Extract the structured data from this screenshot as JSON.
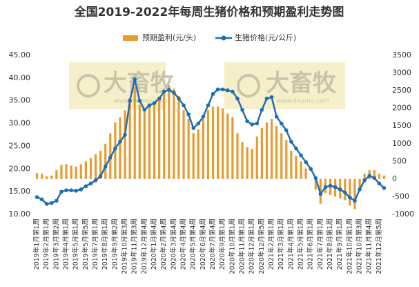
{
  "chart_data": {
    "type": "bar-line",
    "title": "全国2019-2022年每周生猪价格和预期盈利走势图",
    "watermarks": [
      "大畜牧",
      "www.dxumu.com",
      "大畜牧",
      "www.dxumu.com"
    ],
    "categories": [
      "2019年1月第1周",
      null,
      "2019年2月第1周",
      null,
      "2019年3月第2周",
      null,
      "2019年4月第1周",
      null,
      "2019年5月第1周",
      null,
      "2019年5月第5周",
      null,
      "2019年7月第1周",
      null,
      "2019年8月第1周",
      null,
      "2019年9月第2周",
      null,
      "2019年10月第3周",
      null,
      "2019年11月第3周",
      null,
      "2019年12月第4周",
      null,
      "2020年1月第4周",
      null,
      "2020年2月第4周",
      null,
      "2020年3月第4周",
      null,
      "2020年4月第4周",
      null,
      "2020年5月第4周",
      null,
      "2020年6月第4周",
      null,
      "2020年7月第4周",
      null,
      "2020年9月第1周",
      null,
      "2020年10月第1周",
      null,
      "2020年11月第1周",
      null,
      "2020年12月第1周",
      null,
      "2020年12月第5周",
      null,
      "2021年2月第1周",
      null,
      "2021年3月第1周",
      null,
      "2021年4月第1周",
      null,
      "2021年5月第1周",
      null,
      "2021年6月第1周",
      null,
      "2021年7月第1周",
      null,
      "2021年8月第1周",
      null,
      "2021年9月第1周",
      null,
      "2021年10月第1周",
      null,
      "2021年10月第3周",
      null,
      "2021年11月第4周",
      null,
      "2021年12月第5周",
      null
    ],
    "series": [
      {
        "name": "预期盈利(元/头)",
        "type": "bar",
        "axis": "y2",
        "color": "#e89b2e",
        "values": [
          170,
          150,
          80,
          100,
          250,
          400,
          420,
          380,
          350,
          420,
          500,
          600,
          700,
          800,
          1000,
          1300,
          1600,
          1750,
          1950,
          2300,
          2600,
          2100,
          1900,
          2050,
          2150,
          2300,
          2500,
          2650,
          2550,
          2350,
          1950,
          1700,
          1300,
          1400,
          1700,
          1950,
          2050,
          2050,
          2000,
          1850,
          1750,
          1300,
          1050,
          900,
          850,
          1200,
          1450,
          1600,
          1700,
          1500,
          1300,
          1100,
          800,
          650,
          500,
          300,
          0,
          -300,
          -700,
          -400,
          -450,
          -500,
          -550,
          -600,
          -750,
          -850,
          -300,
          150,
          250,
          250,
          150,
          100
        ]
      },
      {
        "name": "生猪价格(元/公斤)",
        "type": "line",
        "color": "#1f6db3",
        "values": [
          13.8,
          13.3,
          12.3,
          12.5,
          13.0,
          15.0,
          15.3,
          15.3,
          15.2,
          15.5,
          16.2,
          16.8,
          17.5,
          18.4,
          20.5,
          22.5,
          24.5,
          26.0,
          27.5,
          35.0,
          39.7,
          35.0,
          33.0,
          34.0,
          34.5,
          35.5,
          37.0,
          37.4,
          36.8,
          35.5,
          34.0,
          32.0,
          29.0,
          30.0,
          31.5,
          34.0,
          36.5,
          37.5,
          37.5,
          37.3,
          37.0,
          35.5,
          33.0,
          30.5,
          29.8,
          30.0,
          33.0,
          35.5,
          35.8,
          31.5,
          30.0,
          28.5,
          26.0,
          24.5,
          23.0,
          21.5,
          20.0,
          18.0,
          14.5,
          16.0,
          16.3,
          16.0,
          15.5,
          14.8,
          13.7,
          13.0,
          15.5,
          17.5,
          18.5,
          18.0,
          16.8,
          15.8
        ]
      }
    ],
    "ylim": [
      10,
      45
    ],
    "yticks": [
      {
        "value": 10,
        "label": "10.00"
      },
      {
        "value": 15,
        "label": "15.00"
      },
      {
        "value": 20,
        "label": "20.00"
      },
      {
        "value": 25,
        "label": "25.00"
      },
      {
        "value": 30,
        "label": "30.00"
      },
      {
        "value": 35,
        "label": "35.00"
      },
      {
        "value": 40,
        "label": "40.00"
      },
      {
        "value": 45,
        "label": "45.00"
      }
    ],
    "y2lim": [
      -1000,
      3500
    ],
    "y2ticks": [
      -1000,
      -500,
      0,
      500,
      1000,
      1500,
      2000,
      2500,
      3000,
      3500
    ],
    "legend": "top"
  }
}
